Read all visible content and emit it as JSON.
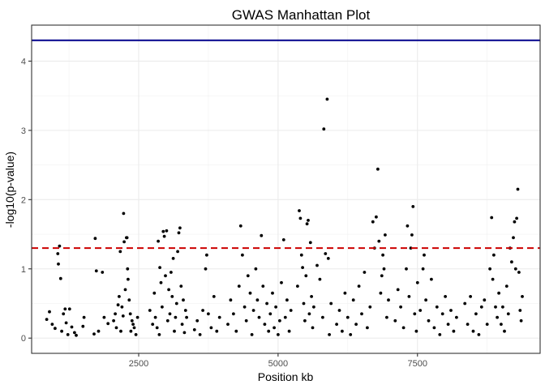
{
  "chart_data": {
    "type": "scatter",
    "title": "GWAS Manhattan Plot",
    "xlabel": "Position kb",
    "ylabel": "-log10(p-value)",
    "xlim": [
      580,
      9700
    ],
    "ylim": [
      -0.22,
      4.52
    ],
    "x_ticks": [
      2500,
      5000,
      7500
    ],
    "x_tick_labels": [
      "2500",
      "5000",
      "7500"
    ],
    "y_ticks": [
      0,
      1,
      2,
      3,
      4
    ],
    "y_tick_labels": [
      "0",
      "1",
      "2",
      "3",
      "4"
    ],
    "grid": true,
    "reference_lines": [
      {
        "y": 4.3,
        "style": "solid",
        "color": "#00008B"
      },
      {
        "y": 1.3,
        "style": "dashed",
        "color": "#CC0000"
      }
    ],
    "point_color": "#000000",
    "series": [
      {
        "points": [
          [
            850,
            0.27
          ],
          [
            900,
            0.38
          ],
          [
            950,
            0.2
          ],
          [
            1000,
            0.14
          ],
          [
            1050,
            1.22
          ],
          [
            1060,
            1.07
          ],
          [
            1080,
            1.33
          ],
          [
            1100,
            0.86
          ],
          [
            1120,
            0.1
          ],
          [
            1150,
            0.35
          ],
          [
            1180,
            0.42
          ],
          [
            1200,
            0.22
          ],
          [
            1230,
            0.05
          ],
          [
            1260,
            0.42
          ],
          [
            1300,
            0.16
          ],
          [
            1350,
            0.08
          ],
          [
            1380,
            0.04
          ],
          [
            1500,
            0.17
          ],
          [
            1520,
            0.3
          ],
          [
            1700,
            0.06
          ],
          [
            1720,
            1.44
          ],
          [
            1740,
            0.97
          ],
          [
            1780,
            0.1
          ],
          [
            1850,
            0.95
          ],
          [
            1880,
            0.3
          ],
          [
            1950,
            0.21
          ],
          [
            2050,
            0.25
          ],
          [
            2080,
            0.35
          ],
          [
            2100,
            0.15
          ],
          [
            2130,
            0.48
          ],
          [
            2150,
            0.6
          ],
          [
            2170,
            1.25
          ],
          [
            2180,
            0.1
          ],
          [
            2200,
            0.45
          ],
          [
            2220,
            0.32
          ],
          [
            2230,
            1.8
          ],
          [
            2240,
            1.39
          ],
          [
            2260,
            0.7
          ],
          [
            2280,
            1.45
          ],
          [
            2290,
            1.45
          ],
          [
            2300,
            1.0
          ],
          [
            2310,
            0.85
          ],
          [
            2330,
            0.55
          ],
          [
            2350,
            0.35
          ],
          [
            2360,
            0.1
          ],
          [
            2380,
            0.25
          ],
          [
            2400,
            0.2
          ],
          [
            2420,
            0.15
          ],
          [
            2450,
            0.05
          ],
          [
            2480,
            0.3
          ],
          [
            2700,
            0.4
          ],
          [
            2750,
            0.2
          ],
          [
            2780,
            0.65
          ],
          [
            2800,
            0.3
          ],
          [
            2830,
            0.15
          ],
          [
            2850,
            1.4
          ],
          [
            2870,
            0.05
          ],
          [
            2880,
            1.02
          ],
          [
            2900,
            0.8
          ],
          [
            2920,
            0.45
          ],
          [
            2940,
            1.54
          ],
          [
            2960,
            1.47
          ],
          [
            2980,
            0.9
          ],
          [
            3000,
            1.55
          ],
          [
            3020,
            0.25
          ],
          [
            3040,
            0.7
          ],
          [
            3060,
            0.35
          ],
          [
            3080,
            0.95
          ],
          [
            3100,
            0.6
          ],
          [
            3120,
            1.15
          ],
          [
            3140,
            0.1
          ],
          [
            3160,
            0.3
          ],
          [
            3180,
            0.5
          ],
          [
            3200,
            1.25
          ],
          [
            3220,
            1.52
          ],
          [
            3240,
            1.59
          ],
          [
            3260,
            0.75
          ],
          [
            3280,
            0.2
          ],
          [
            3300,
            0.55
          ],
          [
            3320,
            0.08
          ],
          [
            3340,
            0.4
          ],
          [
            3360,
            0.3
          ],
          [
            3500,
            0.12
          ],
          [
            3550,
            0.25
          ],
          [
            3600,
            0.05
          ],
          [
            3650,
            0.4
          ],
          [
            3700,
            1.0
          ],
          [
            3720,
            1.2
          ],
          [
            3750,
            0.35
          ],
          [
            3800,
            0.15
          ],
          [
            3850,
            0.6
          ],
          [
            3900,
            0.1
          ],
          [
            3950,
            0.3
          ],
          [
            4100,
            0.2
          ],
          [
            4150,
            0.55
          ],
          [
            4200,
            0.35
          ],
          [
            4250,
            0.1
          ],
          [
            4300,
            0.75
          ],
          [
            4330,
            1.62
          ],
          [
            4360,
            1.2
          ],
          [
            4400,
            0.45
          ],
          [
            4430,
            0.25
          ],
          [
            4460,
            0.9
          ],
          [
            4500,
            0.65
          ],
          [
            4530,
            0.05
          ],
          [
            4560,
            0.4
          ],
          [
            4600,
            1.0
          ],
          [
            4630,
            0.55
          ],
          [
            4660,
            0.3
          ],
          [
            4700,
            1.48
          ],
          [
            4730,
            0.75
          ],
          [
            4760,
            0.2
          ],
          [
            4800,
            0.5
          ],
          [
            4830,
            0.1
          ],
          [
            4860,
            0.35
          ],
          [
            4900,
            0.65
          ],
          [
            4930,
            0.15
          ],
          [
            4960,
            0.45
          ],
          [
            5000,
            0.05
          ],
          [
            5030,
            0.25
          ],
          [
            5060,
            0.8
          ],
          [
            5100,
            1.42
          ],
          [
            5130,
            0.3
          ],
          [
            5160,
            0.55
          ],
          [
            5200,
            0.1
          ],
          [
            5230,
            0.4
          ],
          [
            5350,
            0.75
          ],
          [
            5380,
            1.84
          ],
          [
            5400,
            1.73
          ],
          [
            5420,
            1.2
          ],
          [
            5440,
            1.02
          ],
          [
            5460,
            0.5
          ],
          [
            5480,
            0.25
          ],
          [
            5500,
            0.9
          ],
          [
            5520,
            1.65
          ],
          [
            5540,
            1.7
          ],
          [
            5560,
            0.35
          ],
          [
            5580,
            1.38
          ],
          [
            5600,
            0.6
          ],
          [
            5620,
            0.15
          ],
          [
            5640,
            0.45
          ],
          [
            5700,
            1.05
          ],
          [
            5750,
            0.85
          ],
          [
            5800,
            0.3
          ],
          [
            5820,
            3.02
          ],
          [
            5850,
            1.22
          ],
          [
            5880,
            3.45
          ],
          [
            5900,
            1.15
          ],
          [
            5920,
            0.05
          ],
          [
            5950,
            0.5
          ],
          [
            6050,
            0.2
          ],
          [
            6100,
            0.4
          ],
          [
            6150,
            0.1
          ],
          [
            6200,
            0.65
          ],
          [
            6250,
            0.3
          ],
          [
            6300,
            0.05
          ],
          [
            6350,
            0.55
          ],
          [
            6400,
            0.2
          ],
          [
            6450,
            0.75
          ],
          [
            6500,
            0.35
          ],
          [
            6550,
            0.95
          ],
          [
            6600,
            0.15
          ],
          [
            6650,
            0.45
          ],
          [
            6700,
            1.68
          ],
          [
            6730,
            1.3
          ],
          [
            6760,
            1.75
          ],
          [
            6790,
            2.44
          ],
          [
            6810,
            1.4
          ],
          [
            6840,
            0.65
          ],
          [
            6860,
            0.9
          ],
          [
            6880,
            1.2
          ],
          [
            6900,
            1.0
          ],
          [
            6920,
            1.49
          ],
          [
            6950,
            0.3
          ],
          [
            6980,
            0.55
          ],
          [
            7100,
            0.25
          ],
          [
            7150,
            0.7
          ],
          [
            7200,
            0.45
          ],
          [
            7250,
            0.15
          ],
          [
            7300,
            1.0
          ],
          [
            7320,
            1.62
          ],
          [
            7350,
            0.6
          ],
          [
            7380,
            1.3
          ],
          [
            7400,
            1.49
          ],
          [
            7420,
            1.9
          ],
          [
            7450,
            0.35
          ],
          [
            7480,
            0.1
          ],
          [
            7500,
            0.8
          ],
          [
            7550,
            0.4
          ],
          [
            7600,
            1.0
          ],
          [
            7620,
            1.2
          ],
          [
            7650,
            0.55
          ],
          [
            7700,
            0.25
          ],
          [
            7750,
            0.85
          ],
          [
            7800,
            0.15
          ],
          [
            7850,
            0.45
          ],
          [
            7900,
            0.05
          ],
          [
            7950,
            0.35
          ],
          [
            8000,
            0.6
          ],
          [
            8050,
            0.2
          ],
          [
            8100,
            0.4
          ],
          [
            8150,
            0.1
          ],
          [
            8200,
            0.3
          ],
          [
            8350,
            0.5
          ],
          [
            8400,
            0.2
          ],
          [
            8450,
            0.6
          ],
          [
            8500,
            0.1
          ],
          [
            8550,
            0.35
          ],
          [
            8600,
            0.05
          ],
          [
            8650,
            0.45
          ],
          [
            8700,
            0.55
          ],
          [
            8750,
            0.2
          ],
          [
            8800,
            1.0
          ],
          [
            8830,
            1.74
          ],
          [
            8850,
            0.85
          ],
          [
            8870,
            1.2
          ],
          [
            8900,
            0.45
          ],
          [
            8930,
            0.3
          ],
          [
            8960,
            0.65
          ],
          [
            9000,
            0.2
          ],
          [
            9030,
            0.45
          ],
          [
            9060,
            0.1
          ],
          [
            9100,
            0.75
          ],
          [
            9130,
            0.35
          ],
          [
            9160,
            1.3
          ],
          [
            9190,
            1.1
          ],
          [
            9220,
            1.45
          ],
          [
            9240,
            1.68
          ],
          [
            9260,
            1.0
          ],
          [
            9280,
            1.73
          ],
          [
            9300,
            2.15
          ],
          [
            9320,
            0.95
          ],
          [
            9340,
            0.4
          ],
          [
            9360,
            0.25
          ],
          [
            9380,
            0.6
          ]
        ]
      }
    ]
  }
}
